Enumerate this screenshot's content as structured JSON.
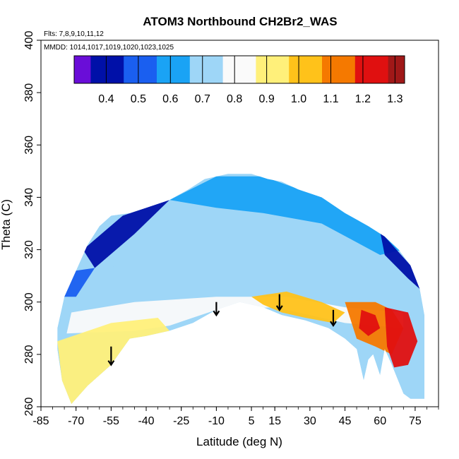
{
  "chart_data": {
    "type": "heatmap",
    "title": "ATOM3 Northbound CH2Br2_WAS",
    "annotations": [
      "Flts: 7,8,9,10,11,12",
      "MMDD: 1014,1017,1019,1020,1023,1025"
    ],
    "xlabel": "Latitude (deg N)",
    "ylabel": "Theta (C)",
    "xlim": [
      -85,
      85
    ],
    "ylim": [
      260,
      400
    ],
    "xticks": [
      "-85",
      "-70",
      "-55",
      "-40",
      "-25",
      "-10",
      "5",
      "15",
      "30",
      "45",
      "60",
      "75"
    ],
    "yticks": [
      "260",
      "280",
      "300",
      "320",
      "340",
      "360",
      "380",
      "400"
    ],
    "colorbar": {
      "ticks": [
        "0.4",
        "0.5",
        "0.6",
        "0.7",
        "0.8",
        "0.9",
        "1.0",
        "1.1",
        "1.2",
        "1.3"
      ],
      "range": [
        0.3,
        1.33
      ],
      "colors": [
        "#6a0dd8",
        "#0010a8",
        "#1a5ff0",
        "#1aa3f5",
        "#9ed6f7",
        "#fafafa",
        "#fff07a",
        "#ffc21a",
        "#f57900",
        "#e01010",
        "#a01818"
      ]
    },
    "boundary": {
      "upper": [
        [
          -78,
          290
        ],
        [
          -75,
          302
        ],
        [
          -70,
          312
        ],
        [
          -65,
          322
        ],
        [
          -60,
          329
        ],
        [
          -55,
          333
        ],
        [
          -47,
          334
        ],
        [
          -40,
          336
        ],
        [
          -30,
          339
        ],
        [
          -22,
          343
        ],
        [
          -15,
          347
        ],
        [
          -5,
          349
        ],
        [
          5,
          349
        ],
        [
          12,
          347
        ],
        [
          18,
          346
        ],
        [
          25,
          343
        ],
        [
          35,
          340
        ],
        [
          45,
          334
        ],
        [
          55,
          329
        ],
        [
          62,
          325
        ],
        [
          68,
          320
        ],
        [
          73,
          314
        ],
        [
          77,
          305
        ],
        [
          79,
          295
        ]
      ],
      "lower": [
        [
          79,
          263
        ],
        [
          73,
          263
        ],
        [
          70,
          265
        ],
        [
          65,
          276
        ],
        [
          62,
          282
        ],
        [
          60,
          272
        ],
        [
          57,
          280
        ],
        [
          55,
          278
        ],
        [
          53,
          270
        ],
        [
          50,
          282
        ],
        [
          45,
          286
        ],
        [
          38,
          290
        ],
        [
          28,
          293
        ],
        [
          18,
          295
        ],
        [
          10,
          298
        ],
        [
          0,
          300
        ],
        [
          -10,
          297
        ],
        [
          -20,
          292
        ],
        [
          -30,
          289
        ],
        [
          -40,
          287
        ],
        [
          -47,
          286
        ],
        [
          -55,
          276
        ],
        [
          -65,
          268
        ],
        [
          -72,
          261
        ],
        [
          -76,
          270
        ],
        [
          -78,
          282
        ]
      ]
    },
    "regions": [
      {
        "value": 0.44,
        "points": [
          [
            -67,
            320
          ],
          [
            -50,
            333
          ],
          [
            -30,
            339
          ],
          [
            -45,
            326
          ],
          [
            -62,
            313
          ]
        ]
      },
      {
        "value": 0.58,
        "points": [
          [
            -30,
            339
          ],
          [
            -10,
            348
          ],
          [
            10,
            348
          ],
          [
            35,
            340
          ],
          [
            60,
            327
          ],
          [
            70,
            320
          ],
          [
            60,
            318
          ],
          [
            35,
            330
          ],
          [
            10,
            334
          ],
          [
            -10,
            336
          ]
        ]
      },
      {
        "value": 0.42,
        "points": [
          [
            60,
            327
          ],
          [
            73,
            314
          ],
          [
            77,
            305
          ],
          [
            72,
            309
          ],
          [
            62,
            318
          ]
        ]
      },
      {
        "value": 0.55,
        "points": [
          [
            -75,
            302
          ],
          [
            -70,
            312
          ],
          [
            -62,
            313
          ],
          [
            -70,
            302
          ]
        ]
      },
      {
        "value": 0.74,
        "points": [
          [
            -70,
            302
          ],
          [
            -45,
            320
          ],
          [
            -10,
            325
          ],
          [
            20,
            322
          ],
          [
            45,
            315
          ],
          [
            70,
            310
          ],
          [
            70,
            300
          ],
          [
            45,
            302
          ],
          [
            20,
            305
          ],
          [
            -10,
            304
          ],
          [
            -45,
            300
          ],
          [
            -72,
            296
          ]
        ]
      },
      {
        "value": 0.86,
        "points": [
          [
            -72,
            296
          ],
          [
            -45,
            300
          ],
          [
            -10,
            302
          ],
          [
            20,
            302
          ],
          [
            45,
            298
          ],
          [
            70,
            296
          ],
          [
            70,
            290
          ],
          [
            45,
            292
          ],
          [
            15,
            298
          ],
          [
            -10,
            297
          ],
          [
            -30,
            291
          ],
          [
            -45,
            289
          ],
          [
            -74,
            288
          ]
        ]
      },
      {
        "value": 0.96,
        "points": [
          [
            -78,
            285
          ],
          [
            -55,
            292
          ],
          [
            -35,
            294
          ],
          [
            -30,
            289
          ],
          [
            -40,
            287
          ],
          [
            -47,
            286
          ],
          [
            -55,
            276
          ],
          [
            -65,
            268
          ],
          [
            -72,
            261
          ],
          [
            -76,
            270
          ]
        ]
      },
      {
        "value": 0.99,
        "points": [
          [
            5,
            302
          ],
          [
            20,
            304
          ],
          [
            35,
            300
          ],
          [
            45,
            296
          ],
          [
            40,
            292
          ],
          [
            28,
            294
          ],
          [
            18,
            296
          ],
          [
            10,
            299
          ]
        ]
      },
      {
        "value": 1.08,
        "points": [
          [
            45,
            300
          ],
          [
            58,
            300
          ],
          [
            65,
            297
          ],
          [
            70,
            290
          ],
          [
            65,
            280
          ],
          [
            58,
            283
          ],
          [
            50,
            286
          ]
        ]
      },
      {
        "value": 1.22,
        "points": [
          [
            52,
            297
          ],
          [
            58,
            295
          ],
          [
            60,
            290
          ],
          [
            55,
            287
          ],
          [
            51,
            290
          ]
        ]
      },
      {
        "value": 1.2,
        "points": [
          [
            62,
            298
          ],
          [
            72,
            296
          ],
          [
            76,
            285
          ],
          [
            72,
            276
          ],
          [
            66,
            275
          ],
          [
            63,
            283
          ]
        ]
      }
    ],
    "arrows_at_latitude": [
      -55,
      -10,
      17,
      40
    ],
    "arrow_tops": [
      283,
      300,
      303,
      297
    ],
    "arrow_bottoms": [
      276,
      295,
      297,
      291
    ]
  }
}
